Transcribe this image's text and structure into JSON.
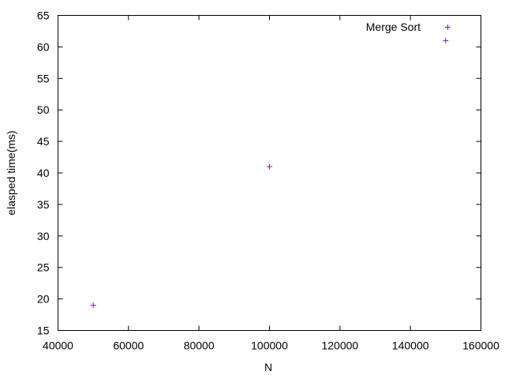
{
  "chart_data": {
    "type": "scatter",
    "title": "",
    "xlabel": "N",
    "ylabel": "elasped time(ms)",
    "xlim": [
      40000,
      160000
    ],
    "ylim": [
      15,
      65
    ],
    "x_ticks": [
      40000,
      60000,
      80000,
      100000,
      120000,
      140000,
      160000
    ],
    "x_tick_labels": [
      "40000",
      "60000",
      "80000",
      "100000",
      "120000",
      "140000",
      "160000"
    ],
    "y_ticks": [
      15,
      20,
      25,
      30,
      35,
      40,
      45,
      50,
      55,
      60,
      65
    ],
    "y_tick_labels": [
      "15",
      "20",
      "25",
      "30",
      "35",
      "40",
      "45",
      "50",
      "55",
      "60",
      "65"
    ],
    "grid": false,
    "legend_position": "top-right",
    "series": [
      {
        "name": "Merge Sort",
        "color": "#9400d3",
        "marker": "plus",
        "x": [
          50000,
          100000,
          150000
        ],
        "y": [
          19,
          41,
          61
        ]
      }
    ]
  }
}
